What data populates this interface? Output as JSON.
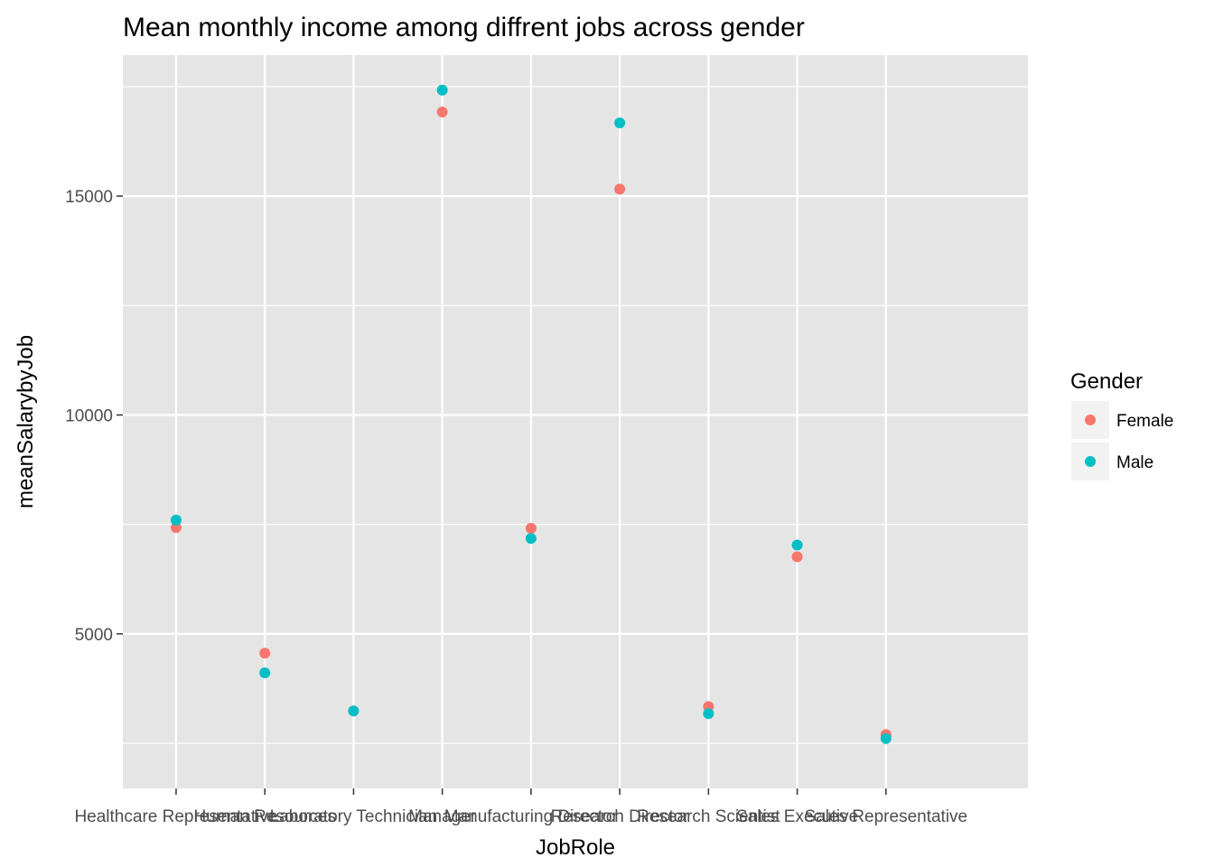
{
  "chart_data": {
    "type": "scatter",
    "title": "Mean monthly income among diffrent jobs across gender",
    "xlabel": "JobRole",
    "ylabel": "meanSalarybyJob",
    "categories": [
      "Healthcare Representative",
      "Human Resources",
      "Laboratory Technician",
      "Manager",
      "Manufacturing Director",
      "Research Director",
      "Research Scientist",
      "Sales Executive",
      "Sales Representative"
    ],
    "series": [
      {
        "name": "Female",
        "color": "#F8766D",
        "values": [
          7430,
          4560,
          3240,
          16920,
          7410,
          15160,
          3340,
          6760,
          2700
        ]
      },
      {
        "name": "Male",
        "color": "#00BFC4",
        "values": [
          7600,
          4110,
          3240,
          17420,
          7180,
          16670,
          3180,
          7030,
          2610
        ]
      }
    ],
    "yticks": [
      5000,
      10000,
      15000
    ],
    "ylim": [
      1470,
      18220
    ],
    "grid": true,
    "legend": {
      "title": "Gender",
      "position": "right"
    },
    "panel_background": "#E5E5E5",
    "grid_color": "#FFFFFF"
  }
}
